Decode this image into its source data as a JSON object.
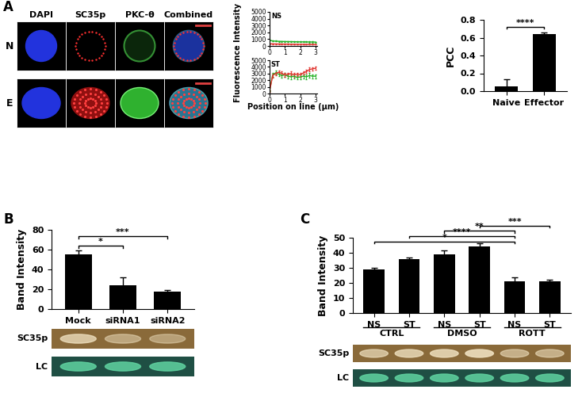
{
  "panel_labels": [
    "A",
    "B",
    "C"
  ],
  "microscopy": {
    "rows": [
      "N",
      "E"
    ],
    "columns": [
      "DAPI",
      "SC35p",
      "PKC-θ",
      "Combined"
    ]
  },
  "chart_data": [
    {
      "type": "line",
      "title": "NS",
      "y_label": "Fluorescence Intensity",
      "x": [
        0,
        0.2,
        0.4,
        0.6,
        0.8,
        1.0,
        1.2,
        1.4,
        1.6,
        1.8,
        2.0,
        2.2,
        2.4,
        2.6,
        2.8,
        3.0
      ],
      "series": [
        {
          "color": "#22b022",
          "values": [
            820,
            740,
            700,
            680,
            660,
            650,
            640,
            630,
            620,
            610,
            600,
            600,
            590,
            580,
            580,
            570
          ],
          "errors": [
            60,
            60,
            60,
            60,
            60,
            60,
            60,
            60,
            60,
            60,
            60,
            60,
            60,
            60,
            60,
            60
          ]
        },
        {
          "color": "#e0302a",
          "values": [
            320,
            300,
            290,
            280,
            270,
            260,
            260,
            250,
            250,
            240,
            240,
            240,
            230,
            230,
            230,
            230
          ],
          "errors": [
            40,
            40,
            40,
            40,
            40,
            40,
            40,
            40,
            40,
            40,
            40,
            40,
            40,
            40,
            40,
            40
          ]
        }
      ],
      "xlim": [
        0,
        3.1
      ],
      "xticks": [
        0,
        1,
        2,
        3
      ],
      "ylim": [
        0,
        5000
      ],
      "yticks": [
        0,
        1000,
        2000,
        3000,
        4000,
        5000
      ]
    },
    {
      "type": "line",
      "title": "ST",
      "x_label": "Position on line (μm)",
      "x": [
        0,
        0.2,
        0.4,
        0.6,
        0.8,
        1.0,
        1.2,
        1.4,
        1.6,
        1.8,
        2.0,
        2.2,
        2.4,
        2.6,
        2.8,
        3.0
      ],
      "series": [
        {
          "color": "#22b022",
          "values": [
            400,
            2800,
            3100,
            2900,
            2700,
            2800,
            2600,
            2500,
            2600,
            2400,
            2500,
            2600,
            2500,
            2700,
            2600,
            2600
          ],
          "errors": [
            100,
            350,
            300,
            300,
            350,
            300,
            300,
            350,
            300,
            300,
            350,
            300,
            300,
            350,
            300,
            300
          ]
        },
        {
          "color": "#e0302a",
          "values": [
            350,
            2700,
            3000,
            3200,
            3000,
            2800,
            2900,
            3000,
            2800,
            2900,
            2800,
            3100,
            3300,
            3600,
            3700,
            3800
          ],
          "errors": [
            100,
            300,
            250,
            250,
            300,
            250,
            250,
            300,
            250,
            250,
            300,
            250,
            250,
            300,
            250,
            250
          ]
        }
      ],
      "xlim": [
        0,
        3.1
      ],
      "xticks": [
        0,
        1,
        2,
        3
      ],
      "ylim": [
        0,
        5000
      ],
      "yticks": [
        0,
        1000,
        2000,
        3000,
        4000,
        5000
      ]
    },
    {
      "type": "bar",
      "y_label": "PCC",
      "categories": [
        "Naive",
        "Effector"
      ],
      "values": [
        0.05,
        0.64
      ],
      "errors": [
        0.08,
        0.015
      ],
      "color": "#000000",
      "ylim": [
        0,
        0.8
      ],
      "yticks": [
        {
          "value": 0,
          "label": "0.0"
        },
        {
          "value": 0.2,
          "label": "0.2"
        },
        {
          "value": 0.4,
          "label": "0.4"
        },
        {
          "value": 0.6,
          "label": "0.6"
        },
        {
          "value": 0.8,
          "label": "0.8"
        }
      ],
      "significance": [
        {
          "from": 0,
          "to": 1,
          "label": "****"
        }
      ]
    },
    {
      "type": "bar",
      "y_label": "Band Intensity",
      "categories": [
        "Mock",
        "siRNA1",
        "siRNA2"
      ],
      "values": [
        55,
        24,
        18
      ],
      "errors": [
        4,
        8,
        1.5
      ],
      "color": "#000000",
      "ylim": [
        0,
        80
      ],
      "yticks": [
        0,
        20,
        40,
        60,
        80
      ],
      "significance": [
        {
          "from": 0,
          "to": 1,
          "label": "*"
        },
        {
          "from": 0,
          "to": 2,
          "label": "***"
        }
      ],
      "gel_rows": [
        "SC35p",
        "LC"
      ]
    },
    {
      "type": "bar",
      "y_label": "Band Intensity",
      "categories": [
        "NS",
        "ST",
        "NS",
        "ST",
        "NS",
        "ST"
      ],
      "groups": [
        "CTRL",
        "DMSO",
        "ROTT"
      ],
      "values": [
        29,
        36,
        39,
        44,
        21,
        21
      ],
      "errors": [
        1,
        1,
        2.5,
        2.5,
        2.5,
        1
      ],
      "color": "#000000",
      "ylim": [
        0,
        50
      ],
      "yticks": [
        0,
        10,
        20,
        30,
        40,
        50
      ],
      "significance": [
        {
          "from": 0,
          "to": 4,
          "label": "*"
        },
        {
          "from": 1,
          "to": 4,
          "label": "****"
        },
        {
          "from": 2,
          "to": 4,
          "label": "**"
        },
        {
          "from": 3,
          "to": 5,
          "label": "***"
        }
      ],
      "gel_rows": [
        "SC35p",
        "LC"
      ]
    }
  ]
}
